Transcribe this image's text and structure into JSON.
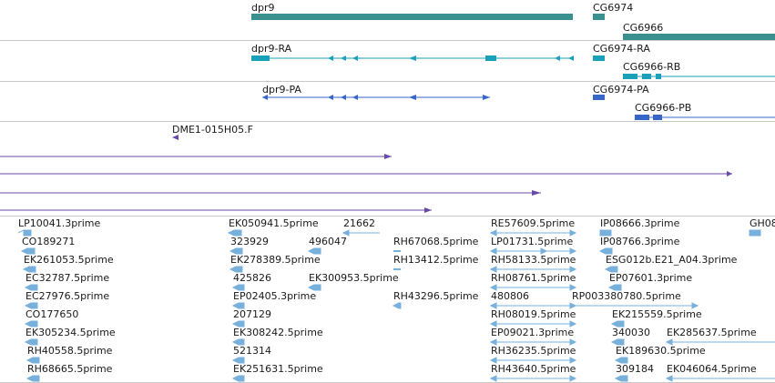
{
  "colors": {
    "gene": "#3a8f8f",
    "transcript_ra": "#1aa0b8",
    "transcript_pa": "#3566c8",
    "cdna": "#6a4aa8",
    "est": "#78b0dc",
    "separator": "#c8c8c8"
  },
  "tracks": {
    "genes": {
      "labels": [
        "dpr9",
        "CG6974",
        "CG6966"
      ]
    },
    "transcripts": {
      "labels": [
        "dpr9-RA",
        "CG6974-RA",
        "CG6966-RB"
      ]
    },
    "proteins": {
      "labels": [
        "dpr9-PA",
        "CG6974-PA",
        "CG6966-PB"
      ]
    },
    "cdna": {
      "labels": [
        "DME1-015H05.F"
      ]
    },
    "ests": {
      "labels": [
        "LP10041.3prime",
        "EK050941.5prime",
        "21662",
        "RE57609.5prime",
        "IP08666.3prime",
        "GH08",
        "CO189271",
        "323929",
        "496047",
        "RH67068.5prime",
        "LP01731.5prime",
        "IP08766.3prime",
        "EK261053.5prime",
        "EK278389.5prime",
        "RH13412.5prime",
        "RH58133.5prime",
        "ESG012b.E21_A04.3prime",
        "EC32787.5prime",
        "425826",
        "EK300953.5prime",
        "RH08761.5prime",
        "EP07601.3prime",
        "EC27976.5prime",
        "EP02405.3prime",
        "RH43296.5prime",
        "480806",
        "RP003380780.5prime",
        "CO177650",
        "207129",
        "RH08019.5prime",
        "EK215559.5prime",
        "EK305234.5prime",
        "EK308242.5prime",
        "EP09021.3prime",
        "340030",
        "EK285637.5prime",
        "RH40558.5prime",
        "521314",
        "RH36235.5prime",
        "EK189630.5prime",
        "RH68665.5prime",
        "EK251631.5prime",
        "RH43640.5prime",
        "309184",
        "EK046064.5prime"
      ]
    }
  }
}
